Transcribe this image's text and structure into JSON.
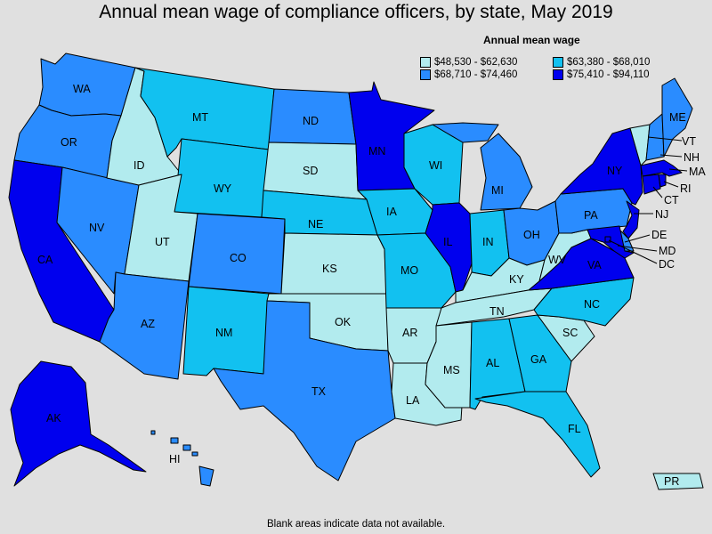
{
  "title": "Annual mean wage of compliance officers, by state, May 2019",
  "legend": {
    "title": "Annual mean wage",
    "items": [
      {
        "key": "a",
        "range": "$48,530 - $62,630",
        "color": "#b2ebee"
      },
      {
        "key": "b",
        "range": "$63,380 - $68,010",
        "color": "#12c1f0"
      },
      {
        "key": "c",
        "range": "$68,710 - $74,460",
        "color": "#2a8cff"
      },
      {
        "key": "d",
        "range": "$75,410 - $94,110",
        "color": "#0000ee"
      }
    ]
  },
  "footnote": "Blank areas indicate data not available.",
  "states": {
    "WA": {
      "label": "WA",
      "class": "c"
    },
    "OR": {
      "label": "OR",
      "class": "c"
    },
    "CA": {
      "label": "CA",
      "class": "d"
    },
    "NV": {
      "label": "NV",
      "class": "c"
    },
    "ID": {
      "label": "ID",
      "class": "a"
    },
    "MT": {
      "label": "MT",
      "class": "b"
    },
    "WY": {
      "label": "WY",
      "class": "b"
    },
    "UT": {
      "label": "UT",
      "class": "a"
    },
    "AZ": {
      "label": "AZ",
      "class": "c"
    },
    "CO": {
      "label": "CO",
      "class": "c"
    },
    "NM": {
      "label": "NM",
      "class": "b"
    },
    "ND": {
      "label": "ND",
      "class": "c"
    },
    "SD": {
      "label": "SD",
      "class": "a"
    },
    "NE": {
      "label": "NE",
      "class": "b"
    },
    "KS": {
      "label": "KS",
      "class": "a"
    },
    "OK": {
      "label": "OK",
      "class": "a"
    },
    "TX": {
      "label": "TX",
      "class": "c"
    },
    "MN": {
      "label": "MN",
      "class": "d"
    },
    "IA": {
      "label": "IA",
      "class": "b"
    },
    "MO": {
      "label": "MO",
      "class": "b"
    },
    "AR": {
      "label": "AR",
      "class": "a"
    },
    "LA": {
      "label": "LA",
      "class": "a"
    },
    "WI": {
      "label": "WI",
      "class": "b"
    },
    "IL": {
      "label": "IL",
      "class": "d"
    },
    "MI": {
      "label": "MI",
      "class": "c"
    },
    "IN": {
      "label": "IN",
      "class": "b"
    },
    "OH": {
      "label": "OH",
      "class": "c"
    },
    "KY": {
      "label": "KY",
      "class": "a"
    },
    "TN": {
      "label": "TN",
      "class": "a"
    },
    "MS": {
      "label": "MS",
      "class": "a"
    },
    "AL": {
      "label": "AL",
      "class": "b"
    },
    "GA": {
      "label": "GA",
      "class": "b"
    },
    "FL": {
      "label": "FL",
      "class": "b"
    },
    "SC": {
      "label": "SC",
      "class": "a"
    },
    "NC": {
      "label": "NC",
      "class": "b"
    },
    "VA": {
      "label": "VA",
      "class": "d"
    },
    "WV": {
      "label": "WV",
      "class": "a"
    },
    "PA": {
      "label": "PA",
      "class": "c"
    },
    "NY": {
      "label": "NY",
      "class": "d"
    },
    "VT": {
      "label": "VT",
      "class": "a"
    },
    "NH": {
      "label": "NH",
      "class": "c"
    },
    "ME": {
      "label": "ME",
      "class": "c"
    },
    "MA": {
      "label": "MA",
      "class": "d"
    },
    "RI": {
      "label": "RI",
      "class": "d"
    },
    "CT": {
      "label": "CT",
      "class": "d"
    },
    "NJ": {
      "label": "NJ",
      "class": "d"
    },
    "DE": {
      "label": "DE",
      "class": "c"
    },
    "MD": {
      "label": "MD",
      "class": "d"
    },
    "DC": {
      "label": "DC",
      "class": "d"
    },
    "AK": {
      "label": "AK",
      "class": "d"
    },
    "HI": {
      "label": "HI",
      "class": "c"
    },
    "PR": {
      "label": "PR",
      "class": "a"
    }
  }
}
